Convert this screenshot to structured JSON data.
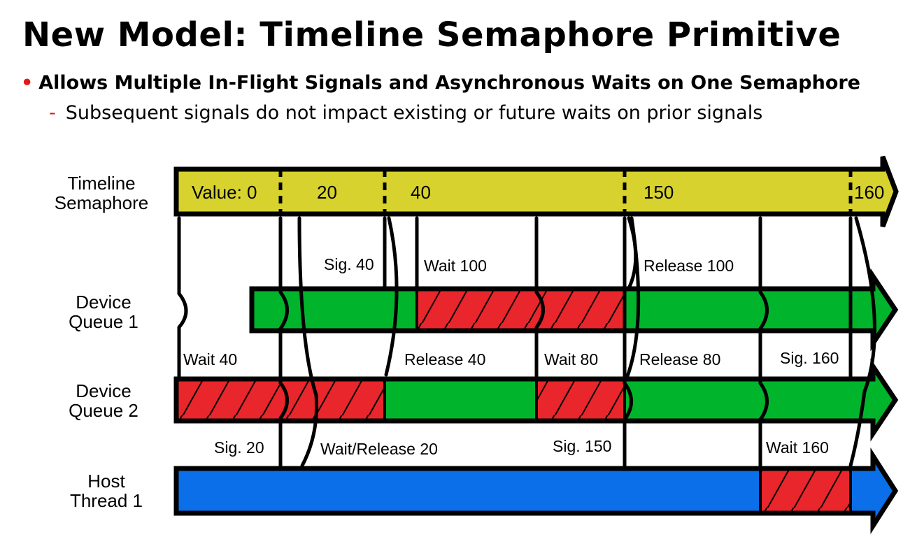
{
  "slide": {
    "title": "New Model: Timeline Semaphore Primitive",
    "bullet_main": "Allows Multiple In-Flight Signals and Asynchronous Waits on One Semaphore",
    "bullet_sub": "Subsequent signals do not impact existing or future waits on prior signals"
  },
  "colors": {
    "timeline": "#d7d22e",
    "active": "#00b52c",
    "waiting": "#e8262b",
    "host": "#0a6fe8",
    "bullet": "#e21a1a"
  },
  "rows": {
    "timeline": {
      "label1": "Timeline",
      "label2": "Semaphore"
    },
    "queue1": {
      "label1": "Device",
      "label2": "Queue 1"
    },
    "queue2": {
      "label1": "Device",
      "label2": "Queue 2"
    },
    "host": {
      "label1": "Host",
      "label2": "Thread 1"
    }
  },
  "semaphore_values": [
    "Value: 0",
    "20",
    "40",
    "150",
    "160"
  ],
  "events": {
    "sig40": "Sig. 40",
    "wait100": "Wait 100",
    "release100": "Release 100",
    "wait40": "Wait 40",
    "release40": "Release 40",
    "wait80": "Wait 80",
    "release80": "Release 80",
    "sig160": "Sig. 160",
    "sig20": "Sig. 20",
    "waitrelease20": "Wait/Release 20",
    "sig150": "Sig. 150",
    "wait160": "Wait 160"
  }
}
